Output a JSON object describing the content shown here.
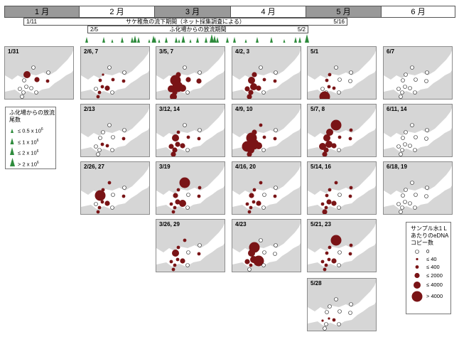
{
  "colors": {
    "dot": "#7a1416",
    "tri": "#2e8b3c",
    "land": "#d6d6d6",
    "water": "#ffffff"
  },
  "months": [
    {
      "label": "1 月",
      "shade": "dark"
    },
    {
      "label": "2 月",
      "shade": "light"
    },
    {
      "label": "3 月",
      "shade": "dark"
    },
    {
      "label": "4 月",
      "shade": "light"
    },
    {
      "label": "5 月",
      "shade": "dark"
    },
    {
      "label": "6 月",
      "shade": "light"
    }
  ],
  "periods": {
    "net": {
      "start": "1/11",
      "title": "サケ稚魚の流下期間（ネット採集調査による）",
      "end": "5/16"
    },
    "release": {
      "start": "2/5",
      "title": "ふ化場からの放流期間",
      "end": "5/2"
    }
  },
  "release_legend": {
    "title_line1": "ふ化場からの放流",
    "title_line2": "尾数",
    "items": [
      {
        "prefix": "≤ 0.5 x 10",
        "exp": "6"
      },
      {
        "prefix": "≤ 1 x 10",
        "exp": "6"
      },
      {
        "prefix": "≤ 2 x 10",
        "exp": "6"
      },
      {
        "prefix": "> 2 x 10",
        "exp": "6"
      }
    ]
  },
  "edna_legend": {
    "title_line1": "サンプル水1 L",
    "title_line2": "あたりのeDNA",
    "title_line3": "コピー数",
    "items": [
      "0",
      "≤ 40",
      "≤ 400",
      "≤ 2000",
      "≤ 4000",
      "> 4000"
    ]
  },
  "chart_data": {
    "type": "scatter",
    "title": "",
    "release_timeline": {
      "date_range": [
        "2/5",
        "5/2"
      ],
      "release_classes": [
        "≤ 0.5 x 10^6",
        "≤ 1 x 10^6",
        "≤ 2 x 10^6",
        "> 2 x 10^6"
      ]
    },
    "edna_classes": [
      "0",
      "≤ 40",
      "≤ 400",
      "≤ 2000",
      "≤ 4000",
      "> 4000"
    ],
    "panels": [
      {
        "date": "1/31",
        "month": 1,
        "sites": [
          0,
          0,
          0,
          0,
          0,
          4,
          0,
          0,
          0,
          3,
          0,
          2
        ]
      },
      {
        "date": "2/6, 7",
        "month": 2,
        "sites": [
          2,
          2,
          0,
          2,
          3,
          1,
          2,
          0,
          0,
          2,
          0,
          2
        ]
      },
      {
        "date": "2/13",
        "month": 2,
        "sites": [
          0,
          2,
          0,
          0,
          2,
          0,
          0,
          0,
          0,
          0,
          0,
          2
        ]
      },
      {
        "date": "2/26, 27",
        "month": 2,
        "sites": [
          5,
          2,
          0,
          2,
          3,
          2,
          2,
          0,
          2,
          0,
          0,
          2
        ]
      },
      {
        "date": "3/5, 7",
        "month": 3,
        "sites": [
          5,
          5,
          4,
          3,
          4,
          3,
          4,
          0,
          0,
          3,
          0,
          3
        ]
      },
      {
        "date": "3/12, 14",
        "month": 3,
        "sites": [
          4,
          3,
          3,
          3,
          3,
          2,
          3,
          0,
          0,
          2,
          0,
          2
        ]
      },
      {
        "date": "3/19",
        "month": 3,
        "sites": [
          3,
          3,
          2,
          2,
          4,
          2,
          2,
          0,
          5,
          0,
          2,
          2
        ]
      },
      {
        "date": "3/26, 29",
        "month": 3,
        "sites": [
          4,
          2,
          2,
          2,
          3,
          2,
          2,
          0,
          2,
          0,
          0,
          2
        ]
      },
      {
        "date": "4/2, 3",
        "month": 4,
        "sites": [
          4,
          4,
          3,
          3,
          3,
          3,
          3,
          0,
          0,
          2,
          0,
          2
        ]
      },
      {
        "date": "4/9, 10",
        "month": 4,
        "sites": [
          5,
          5,
          5,
          4,
          4,
          3,
          3,
          0,
          2,
          2,
          0,
          2
        ]
      },
      {
        "date": "4/16, 20",
        "month": 4,
        "sites": [
          3,
          2,
          2,
          2,
          3,
          2,
          2,
          0,
          2,
          0,
          0,
          2
        ]
      },
      {
        "date": "4/23",
        "month": 4,
        "sites": [
          4,
          4,
          3,
          2,
          5,
          5,
          0,
          0,
          0,
          0,
          0,
          0
        ]
      },
      {
        "date": "5/1",
        "month": 5,
        "sites": [
          2,
          2,
          0,
          0,
          2,
          2,
          5,
          0,
          0,
          0,
          0,
          0
        ]
      },
      {
        "date": "5/7, 8",
        "month": 5,
        "sites": [
          4,
          4,
          4,
          3,
          3,
          4,
          3,
          0,
          5,
          2,
          2,
          2
        ]
      },
      {
        "date": "5/14, 16",
        "month": 5,
        "sites": [
          2,
          3,
          2,
          2,
          3,
          2,
          3,
          0,
          2,
          0,
          2,
          2
        ]
      },
      {
        "date": "5/21, 23",
        "month": 5,
        "sites": [
          2,
          2,
          2,
          2,
          3,
          2,
          2,
          0,
          5,
          0,
          2,
          2
        ]
      },
      {
        "date": "5/28",
        "month": 5,
        "sites": [
          0,
          1,
          1,
          0,
          2,
          0,
          0,
          0,
          0,
          0,
          0,
          0
        ]
      },
      {
        "date": "6/7",
        "month": 6,
        "sites": [
          0,
          0,
          0,
          0,
          0,
          0,
          0,
          0,
          0,
          0,
          0,
          0
        ]
      },
      {
        "date": "6/11, 14",
        "month": 6,
        "sites": [
          0,
          0,
          0,
          0,
          0,
          0,
          0,
          0,
          0,
          0,
          0,
          0
        ]
      },
      {
        "date": "6/18, 19",
        "month": 6,
        "sites": [
          0,
          0,
          0,
          0,
          0,
          0,
          0,
          0,
          0,
          0,
          0,
          0
        ]
      }
    ]
  }
}
